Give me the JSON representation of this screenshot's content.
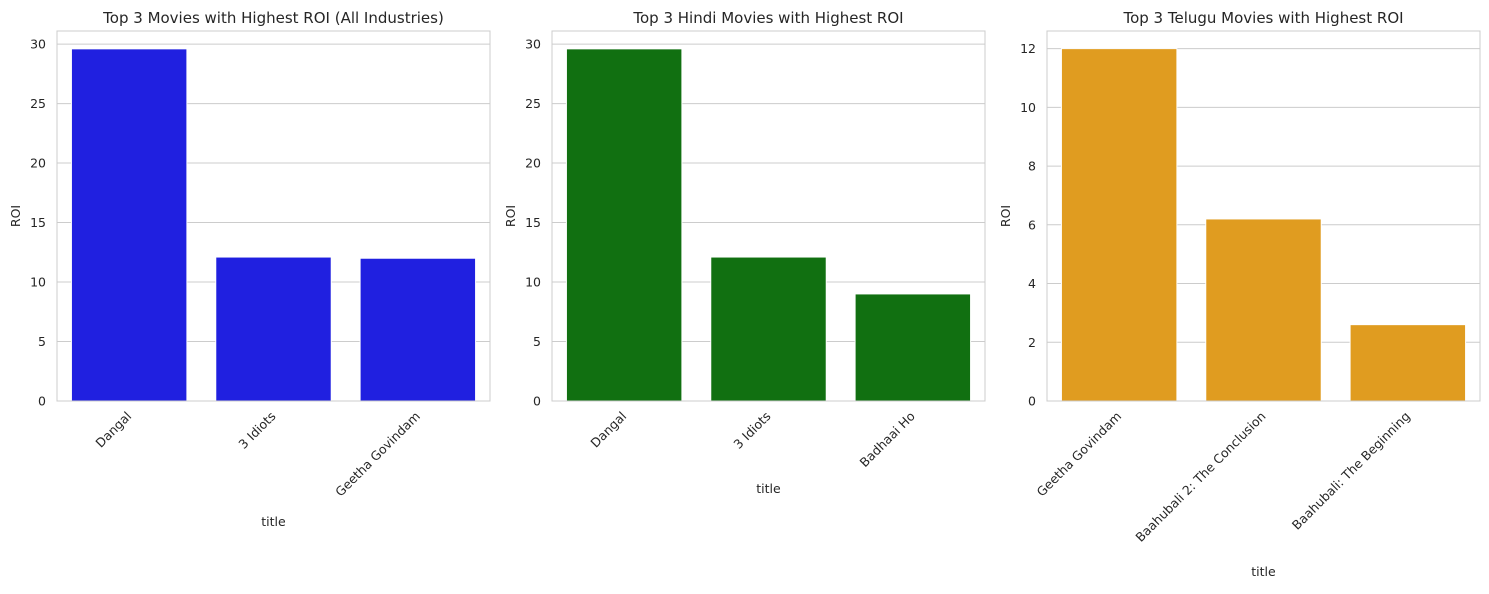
{
  "chart_data": [
    {
      "type": "bar",
      "title": "Top 3 Movies with Highest ROI (All Industries)",
      "xlabel": "title",
      "ylabel": "ROI",
      "categories": [
        "Dangal",
        "3 Idiots",
        "Geetha Govindam"
      ],
      "values": [
        29.6,
        12.1,
        12.0
      ],
      "ylim": [
        0,
        31.1
      ],
      "yticks": [
        0,
        5,
        10,
        15,
        20,
        25,
        30
      ],
      "color": "#2020e0",
      "grid": true
    },
    {
      "type": "bar",
      "title": "Top 3 Hindi Movies with Highest ROI",
      "xlabel": "title",
      "ylabel": "ROI",
      "categories": [
        "Dangal",
        "3 Idiots",
        "Badhaai Ho"
      ],
      "values": [
        29.6,
        12.1,
        9.0
      ],
      "ylim": [
        0,
        31.1
      ],
      "yticks": [
        0,
        5,
        10,
        15,
        20,
        25,
        30
      ],
      "color": "#117011",
      "grid": true
    },
    {
      "type": "bar",
      "title": "Top 3 Telugu Movies with Highest ROI",
      "xlabel": "title",
      "ylabel": "ROI",
      "categories": [
        "Geetha Govindam",
        "Baahubali 2: The Conclusion",
        "Baahubali: The Beginning"
      ],
      "values": [
        12.0,
        6.2,
        2.6
      ],
      "ylim": [
        0,
        12.6
      ],
      "yticks": [
        0,
        2,
        4,
        6,
        8,
        10,
        12
      ],
      "color": "#e09c20",
      "grid": true
    }
  ]
}
